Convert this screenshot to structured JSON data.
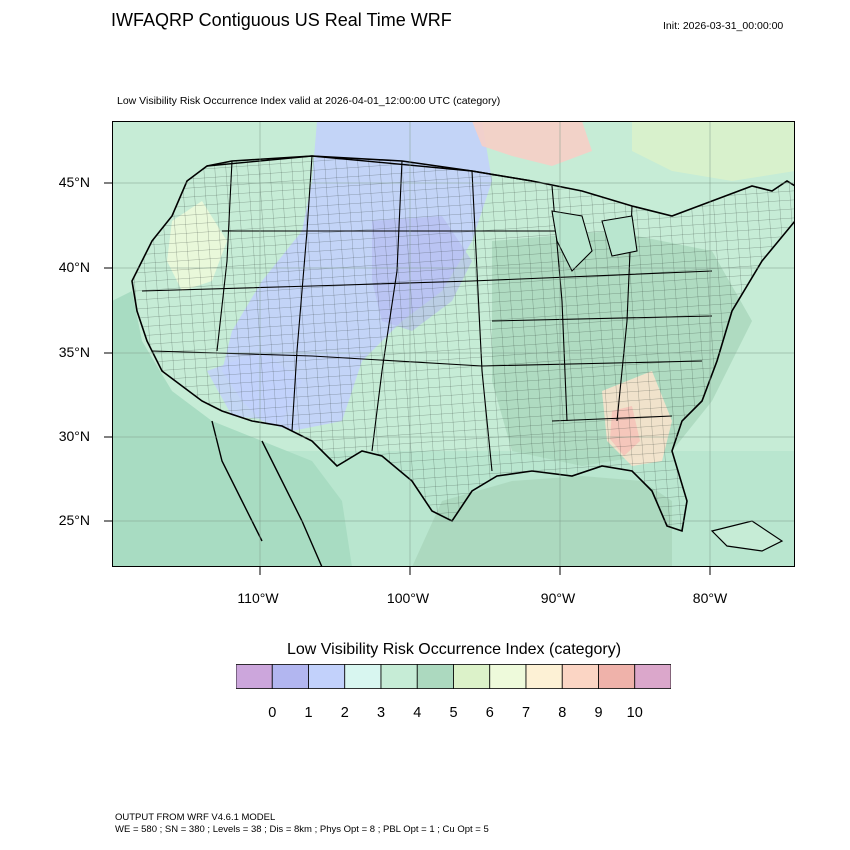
{
  "header": {
    "title": "IWFAQRP Contiguous US Real Time WRF",
    "init": "Init: 2026-03-31_00:00:00"
  },
  "map": {
    "subtitle": "Low Visibility Risk Occurrence Index valid at 2026-04-01_12:00:00 UTC   (category)",
    "lat_labels": [
      "45°N",
      "40°N",
      "35°N",
      "30°N",
      "25°N"
    ],
    "lon_labels": [
      "110°W",
      "100°W",
      "90°W",
      "80°W"
    ],
    "colors": {
      "land_base": "#c6ecd6",
      "plains_blue": "#c2d1fb",
      "east_green": "#acd9bf",
      "southeast_peach": "#fbe3cd",
      "canada_red": "#f6cfc7",
      "ocean": "#b9e6cf"
    }
  },
  "colorbar": {
    "title": "Low Visibility Risk Occurrence Index  (category)",
    "colors": [
      "#cca6dc",
      "#b2b6f0",
      "#c2d1fb",
      "#d8f6f0",
      "#c6ecd6",
      "#acd9bf",
      "#dcf2c9",
      "#eefadb",
      "#fdf1d5",
      "#fbd5c4",
      "#efb2aa",
      "#dba7cb"
    ],
    "labels": [
      "0",
      "1",
      "2",
      "3",
      "4",
      "5",
      "6",
      "7",
      "8",
      "9",
      "10"
    ]
  },
  "footer": {
    "line1": "OUTPUT FROM WRF V4.6.1 MODEL",
    "line2": "WE = 580 ; SN = 380 ; Levels = 38 ; Dis = 8km ; Phys Opt = 8 ; PBL Opt = 1 ; Cu Opt = 5"
  }
}
